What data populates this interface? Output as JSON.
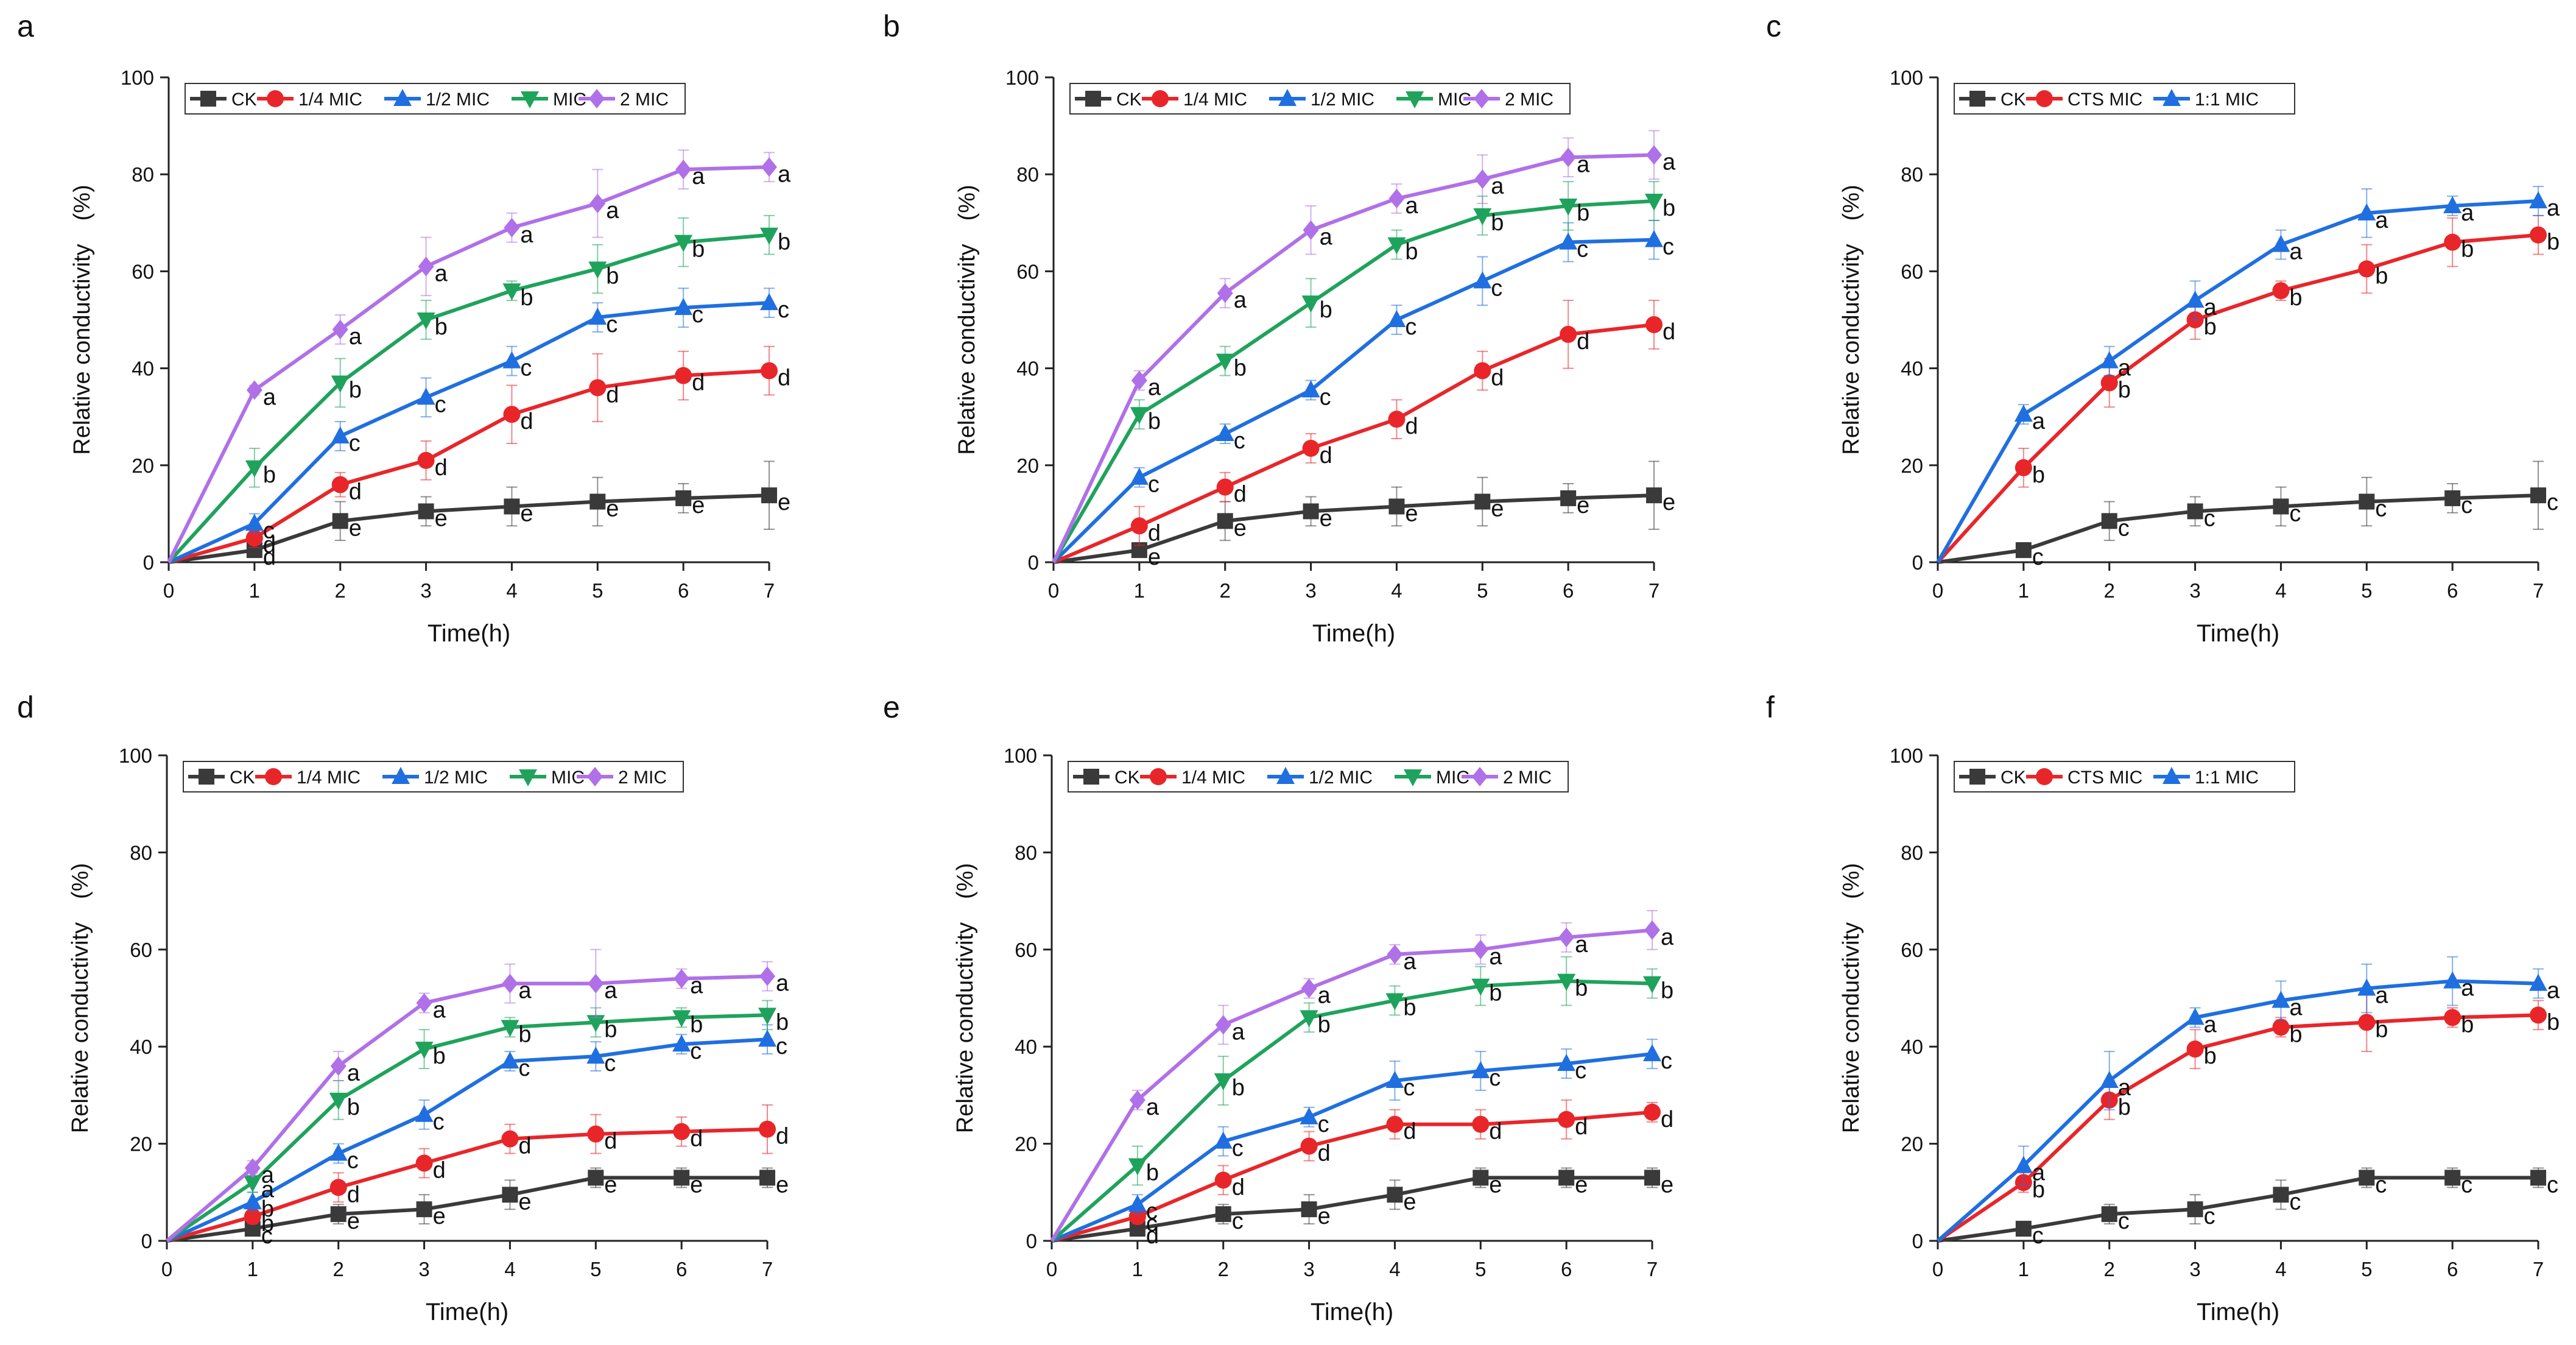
{
  "figure": {
    "ylabel": "Relative conductivity　(%)",
    "xlabel": "Time(h)",
    "colors": {
      "CK": "#3a3a3a",
      "1/4 MIC": "#e8262a",
      "1/2 MIC": "#1f6fe0",
      "MIC": "#1fa35c",
      "2 MIC": "#b070e8",
      "CTS MIC": "#e8262a",
      "1:1  MIC": "#1f6fe0"
    }
  },
  "chart_data": [
    {
      "panel": "a",
      "type": "line",
      "xlabel": "Time(h)",
      "ylabel": "Relative conductivity　(%)",
      "xlim": [
        0,
        7
      ],
      "ylim": [
        0,
        100
      ],
      "x": [
        0,
        1,
        2,
        3,
        4,
        5,
        6,
        7
      ],
      "xticks": [
        "0",
        "1",
        "2",
        "3",
        "4",
        "5",
        "6",
        "7"
      ],
      "yticks": [
        "0",
        "20",
        "40",
        "60",
        "80",
        "100"
      ],
      "series": [
        {
          "name": "CK",
          "marker": "square",
          "values": [
            0,
            2.5,
            8.5,
            10.5,
            11.5,
            12.5,
            13.2,
            13.8
          ],
          "errors": [
            0,
            1.5,
            4,
            3,
            4,
            5,
            3,
            7
          ],
          "letters": [
            "",
            "d",
            "e",
            "e",
            "e",
            "e",
            "e",
            "e"
          ]
        },
        {
          "name": "1/4 MIC",
          "marker": "circle",
          "values": [
            0,
            5,
            16,
            21,
            30.5,
            36,
            38.5,
            39.5
          ],
          "errors": [
            0,
            2,
            2.5,
            4,
            6,
            7,
            5,
            5
          ],
          "letters": [
            "",
            "d",
            "d",
            "d",
            "d",
            "d",
            "d",
            "d"
          ]
        },
        {
          "name": "1/2 MIC",
          "marker": "triangle-up",
          "values": [
            0,
            8,
            26,
            34,
            41.5,
            50.5,
            52.5,
            53.5
          ],
          "errors": [
            0,
            2,
            3,
            4,
            3,
            3,
            4,
            3
          ],
          "letters": [
            "",
            "c",
            "c",
            "c",
            "c",
            "c",
            "c",
            "c"
          ]
        },
        {
          "name": "MIC",
          "marker": "triangle-down",
          "values": [
            0,
            19.5,
            37,
            50,
            56,
            60.5,
            66,
            67.5
          ],
          "errors": [
            0,
            4,
            5,
            4,
            2,
            5,
            5,
            4
          ],
          "letters": [
            "",
            "b",
            "b",
            "b",
            "b",
            "b",
            "b",
            "b"
          ]
        },
        {
          "name": "2 MIC",
          "marker": "diamond",
          "values": [
            0,
            35.5,
            48,
            61,
            69,
            74,
            81,
            81.5
          ],
          "errors": [
            0,
            1,
            3,
            6,
            3,
            7,
            4,
            3
          ],
          "letters": [
            "",
            "a",
            "a",
            "a",
            "a",
            "a",
            "a",
            "a"
          ]
        }
      ]
    },
    {
      "panel": "b",
      "type": "line",
      "xlabel": "Time(h)",
      "ylabel": "Relative conductivity　(%)",
      "xlim": [
        0,
        7
      ],
      "ylim": [
        0,
        100
      ],
      "x": [
        0,
        1,
        2,
        3,
        4,
        5,
        6,
        7
      ],
      "xticks": [
        "0",
        "1",
        "2",
        "3",
        "4",
        "5",
        "6",
        "7"
      ],
      "yticks": [
        "0",
        "20",
        "40",
        "60",
        "80",
        "100"
      ],
      "series": [
        {
          "name": "CK",
          "marker": "square",
          "values": [
            0,
            2.5,
            8.5,
            10.5,
            11.5,
            12.5,
            13.2,
            13.8
          ],
          "errors": [
            0,
            1.5,
            4,
            3,
            4,
            5,
            3,
            7
          ],
          "letters": [
            "",
            "e",
            "e",
            "e",
            "e",
            "e",
            "e",
            "e"
          ]
        },
        {
          "name": "1/4 MIC",
          "marker": "circle",
          "values": [
            0,
            7.5,
            15.5,
            23.5,
            29.5,
            39.5,
            47,
            49
          ],
          "errors": [
            0,
            4,
            3,
            3,
            4,
            4,
            7,
            5
          ],
          "letters": [
            "",
            "d",
            "d",
            "d",
            "d",
            "d",
            "d",
            "d"
          ]
        },
        {
          "name": "1/2 MIC",
          "marker": "triangle-up",
          "values": [
            0,
            17.5,
            26.5,
            35.5,
            50,
            58,
            66,
            66.5
          ],
          "errors": [
            0,
            2,
            2,
            2,
            3,
            5,
            4,
            4
          ],
          "letters": [
            "",
            "c",
            "c",
            "c",
            "c",
            "c",
            "c",
            "c"
          ]
        },
        {
          "name": "MIC",
          "marker": "triangle-down",
          "values": [
            0,
            30.5,
            41.5,
            53.5,
            65.5,
            71.5,
            73.5,
            74.5
          ],
          "errors": [
            0,
            3,
            3,
            5,
            3,
            4,
            5,
            4
          ],
          "letters": [
            "",
            "b",
            "b",
            "b",
            "b",
            "b",
            "b",
            "b"
          ]
        },
        {
          "name": "2 MIC",
          "marker": "diamond",
          "values": [
            0,
            37.5,
            55.5,
            68.5,
            75,
            79,
            83.5,
            84
          ],
          "errors": [
            0,
            2,
            3,
            5,
            3,
            5,
            4,
            5
          ],
          "letters": [
            "",
            "a",
            "a",
            "a",
            "a",
            "a",
            "a",
            "a"
          ]
        }
      ]
    },
    {
      "panel": "c",
      "type": "line",
      "xlabel": "Time(h)",
      "ylabel": "Relative conductivity　(%)",
      "xlim": [
        0,
        7
      ],
      "ylim": [
        0,
        100
      ],
      "x": [
        0,
        1,
        2,
        3,
        4,
        5,
        6,
        7
      ],
      "xticks": [
        "0",
        "1",
        "2",
        "3",
        "4",
        "5",
        "6",
        "7"
      ],
      "yticks": [
        "0",
        "20",
        "40",
        "60",
        "80",
        "100"
      ],
      "series": [
        {
          "name": "CK",
          "marker": "square",
          "values": [
            0,
            2.5,
            8.5,
            10.5,
            11.5,
            12.5,
            13.2,
            13.8
          ],
          "errors": [
            0,
            1.5,
            4,
            3,
            4,
            5,
            3,
            7
          ],
          "letters": [
            "",
            "c",
            "c",
            "c",
            "c",
            "c",
            "c",
            "c"
          ]
        },
        {
          "name": "CTS MIC",
          "marker": "circle",
          "values": [
            0,
            19.5,
            37,
            50,
            56,
            60.5,
            66,
            67.5
          ],
          "errors": [
            0,
            4,
            5,
            4,
            2,
            5,
            5,
            4
          ],
          "letters": [
            "",
            "b",
            "b",
            "b",
            "b",
            "b",
            "b",
            "b"
          ]
        },
        {
          "name": "1:1  MIC",
          "marker": "triangle-up",
          "values": [
            0,
            30.5,
            41.5,
            54,
            65.5,
            72,
            73.5,
            74.5
          ],
          "errors": [
            0,
            2,
            3,
            4,
            3,
            5,
            2,
            3
          ],
          "letters": [
            "",
            "a",
            "a",
            "a",
            "a",
            "a",
            "a",
            "a"
          ]
        }
      ]
    },
    {
      "panel": "d",
      "type": "line",
      "xlabel": "Time(h)",
      "ylabel": "Relative conductivity　(%)",
      "xlim": [
        0,
        7
      ],
      "ylim": [
        0,
        100
      ],
      "x": [
        0,
        1,
        2,
        3,
        4,
        5,
        6,
        7
      ],
      "xticks": [
        "0",
        "1",
        "2",
        "3",
        "4",
        "5",
        "6",
        "7"
      ],
      "yticks": [
        "0",
        "20",
        "40",
        "60",
        "80",
        "100"
      ],
      "series": [
        {
          "name": "CK",
          "marker": "square",
          "values": [
            0,
            2.5,
            5.5,
            6.5,
            9.5,
            13,
            13,
            13
          ],
          "errors": [
            0,
            1,
            2,
            3,
            3,
            2,
            2,
            2
          ],
          "letters": [
            "",
            "c",
            "e",
            "e",
            "e",
            "e",
            "e",
            "e"
          ]
        },
        {
          "name": "1/4 MIC",
          "marker": "circle",
          "values": [
            0,
            5,
            11,
            16,
            21,
            22,
            22.5,
            23
          ],
          "errors": [
            0,
            1.5,
            3,
            3,
            3,
            4,
            3,
            5
          ],
          "letters": [
            "",
            "b",
            "d",
            "d",
            "d",
            "d",
            "d",
            "d"
          ]
        },
        {
          "name": "1/2 MIC",
          "marker": "triangle-up",
          "values": [
            0,
            8,
            18,
            26,
            37,
            38,
            40.5,
            41.5
          ],
          "errors": [
            0,
            2,
            2,
            3,
            2,
            3,
            2,
            3
          ],
          "letters": [
            "",
            "b",
            "c",
            "c",
            "c",
            "c",
            "c",
            "c"
          ]
        },
        {
          "name": "MIC",
          "marker": "triangle-down",
          "values": [
            0,
            12,
            29,
            39.5,
            44,
            45,
            46,
            46.5
          ],
          "errors": [
            0,
            2,
            4,
            4,
            2,
            3,
            2,
            3
          ],
          "letters": [
            "",
            "a",
            "b",
            "b",
            "b",
            "b",
            "b",
            "b"
          ]
        },
        {
          "name": "2 MIC",
          "marker": "diamond",
          "values": [
            0,
            15,
            36,
            49,
            53,
            53,
            54,
            54.5
          ],
          "errors": [
            0,
            1.5,
            3,
            2,
            4,
            7,
            2,
            3
          ],
          "letters": [
            "",
            "a",
            "a",
            "a",
            "a",
            "a",
            "a",
            "a"
          ]
        }
      ]
    },
    {
      "panel": "e",
      "type": "line",
      "xlabel": "Time(h)",
      "ylabel": "Relative conductivity　(%)",
      "xlim": [
        0,
        7
      ],
      "ylim": [
        0,
        100
      ],
      "x": [
        0,
        1,
        2,
        3,
        4,
        5,
        6,
        7
      ],
      "xticks": [
        "0",
        "1",
        "2",
        "3",
        "4",
        "5",
        "6",
        "7"
      ],
      "yticks": [
        "0",
        "20",
        "40",
        "60",
        "80",
        "100"
      ],
      "series": [
        {
          "name": "CK",
          "marker": "square",
          "values": [
            0,
            2.5,
            5.5,
            6.5,
            9.5,
            13,
            13,
            13
          ],
          "errors": [
            0,
            1,
            2,
            3,
            3,
            2,
            2,
            2
          ],
          "letters": [
            "",
            "d",
            "c",
            "e",
            "e",
            "e",
            "e",
            "e"
          ]
        },
        {
          "name": "1/4 MIC",
          "marker": "circle",
          "values": [
            0,
            5,
            12.5,
            19.5,
            24,
            24,
            25,
            26.5
          ],
          "errors": [
            0,
            1.5,
            3,
            3,
            3,
            3,
            4,
            2
          ],
          "letters": [
            "",
            "c",
            "d",
            "d",
            "d",
            "d",
            "d",
            "d"
          ]
        },
        {
          "name": "1/2 MIC",
          "marker": "triangle-up",
          "values": [
            0,
            7.5,
            20.5,
            25.5,
            33,
            35,
            36.5,
            38.5
          ],
          "errors": [
            0,
            2,
            3,
            2,
            4,
            4,
            3,
            3
          ],
          "letters": [
            "",
            "c",
            "c",
            "c",
            "c",
            "c",
            "c",
            "c"
          ]
        },
        {
          "name": "MIC",
          "marker": "triangle-down",
          "values": [
            0,
            15.5,
            33,
            46,
            49.5,
            52.5,
            53.5,
            53
          ],
          "errors": [
            0,
            4,
            5,
            3,
            3,
            4,
            5,
            3
          ],
          "letters": [
            "",
            "b",
            "b",
            "b",
            "b",
            "b",
            "b",
            "b"
          ]
        },
        {
          "name": "2 MIC",
          "marker": "diamond",
          "values": [
            0,
            29,
            44.5,
            52,
            59,
            60,
            62.5,
            64
          ],
          "errors": [
            0,
            2,
            4,
            2,
            2,
            3,
            3,
            4
          ],
          "letters": [
            "",
            "a",
            "a",
            "a",
            "a",
            "a",
            "a",
            "a"
          ]
        }
      ]
    },
    {
      "panel": "f",
      "type": "line",
      "xlabel": "Time(h)",
      "ylabel": "Relative conductivity　(%)",
      "xlim": [
        0,
        7
      ],
      "ylim": [
        0,
        100
      ],
      "x": [
        0,
        1,
        2,
        3,
        4,
        5,
        6,
        7
      ],
      "xticks": [
        "0",
        "1",
        "2",
        "3",
        "4",
        "5",
        "6",
        "7"
      ],
      "yticks": [
        "0",
        "20",
        "40",
        "60",
        "80",
        "100"
      ],
      "series": [
        {
          "name": "CK",
          "marker": "square",
          "values": [
            0,
            2.5,
            5.5,
            6.5,
            9.5,
            13,
            13,
            13
          ],
          "errors": [
            0,
            1,
            2,
            3,
            3,
            2,
            2,
            2
          ],
          "letters": [
            "",
            "c",
            "c",
            "c",
            "c",
            "c",
            "c",
            "c"
          ]
        },
        {
          "name": "CTS MIC",
          "marker": "circle",
          "values": [
            0,
            12,
            29,
            39.5,
            44,
            45,
            46,
            46.5
          ],
          "errors": [
            0,
            2,
            4,
            4,
            2,
            6,
            2,
            3
          ],
          "letters": [
            "",
            "b",
            "b",
            "b",
            "b",
            "b",
            "b",
            "b"
          ]
        },
        {
          "name": "1:1  MIC",
          "marker": "triangle-up",
          "values": [
            0,
            15.5,
            33,
            46,
            49.5,
            52,
            53.5,
            53
          ],
          "errors": [
            0,
            4,
            6,
            2,
            4,
            5,
            5,
            3
          ],
          "letters": [
            "",
            "a",
            "a",
            "a",
            "a",
            "a",
            "a",
            "a"
          ]
        }
      ]
    }
  ]
}
